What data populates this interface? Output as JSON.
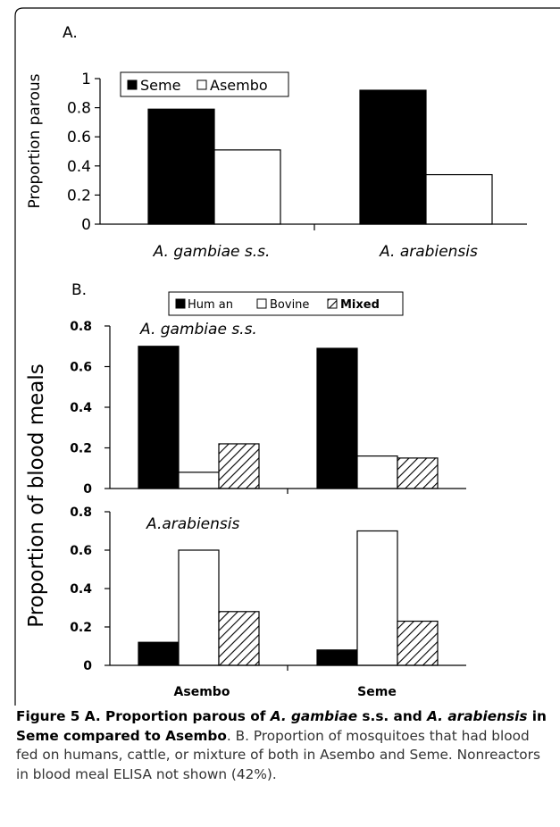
{
  "chart_data": [
    {
      "panel": "A.",
      "type": "bar",
      "ylabel": "Proportion parous",
      "ylim": [
        0,
        1
      ],
      "yticks": [
        "0",
        "0.2",
        "0.4",
        "0.6",
        "0.8",
        "1"
      ],
      "categories": [
        "A. gambiae s.s.",
        "A. arabiensis"
      ],
      "series": [
        {
          "name": "Seme",
          "values": [
            0.79,
            0.92
          ],
          "fill": "#000000"
        },
        {
          "name": "Asembo",
          "values": [
            0.51,
            0.34
          ],
          "fill": "#ffffff"
        }
      ],
      "legend": "top-left",
      "grid": false
    },
    {
      "panel": "B.",
      "type": "bar",
      "ylabel": "Proportion of blood meals",
      "legend_labels": [
        "Hum an",
        "Bovine",
        "Mixed"
      ],
      "legend": "top-center",
      "ylim": [
        0,
        0.8
      ],
      "yticks": [
        "0",
        "0.2",
        "0.4",
        "0.6",
        "0.8"
      ],
      "categories": [
        "Asembo",
        "Seme"
      ],
      "subplots": [
        {
          "title": "A. gambiae s.s.",
          "series": [
            {
              "name": "Human",
              "values": [
                0.7,
                0.69
              ],
              "fill": "#000000"
            },
            {
              "name": "Bovine",
              "values": [
                0.08,
                0.16
              ],
              "fill": "#ffffff"
            },
            {
              "name": "Mixed",
              "values": [
                0.22,
                0.15
              ],
              "fill": "hatch"
            }
          ]
        },
        {
          "title": "A.arabiensis",
          "series": [
            {
              "name": "Human",
              "values": [
                0.12,
                0.08
              ],
              "fill": "#000000"
            },
            {
              "name": "Bovine",
              "values": [
                0.6,
                0.7
              ],
              "fill": "#ffffff"
            },
            {
              "name": "Mixed",
              "values": [
                0.28,
                0.23
              ],
              "fill": "hatch"
            }
          ]
        }
      ],
      "grid": false
    }
  ],
  "caption": {
    "figure_label": "Figure 5",
    "title_parts": [
      " A. Proportion parous of ",
      "A. gambiae",
      " s.s. and ",
      "A. arabiensis",
      " in Seme compared to Asembo"
    ],
    "body": ". B. Proportion of mosquitoes that had blood fed on humans, cattle, or mixture of both in Asembo and Seme. Nonreactors in blood meal ELISA not shown (42%)."
  }
}
